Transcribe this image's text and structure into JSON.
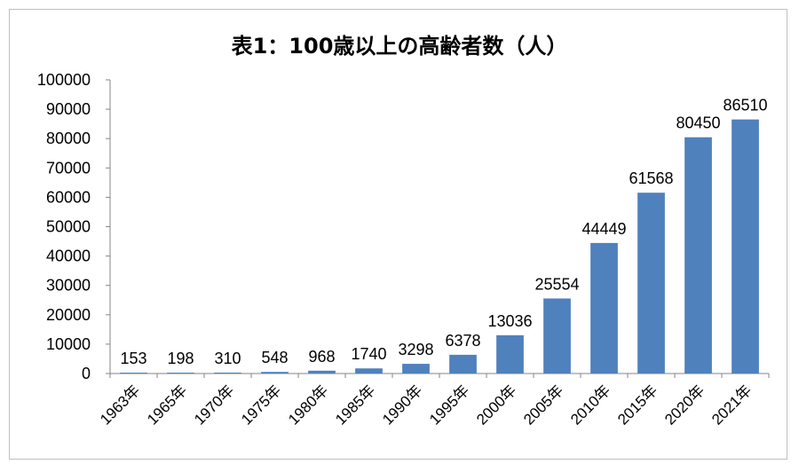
{
  "chart_data": {
    "type": "bar",
    "title": "表1：100歳以上の高齢者数（人）",
    "xlabel": "",
    "ylabel": "",
    "ylim": [
      0,
      100000
    ],
    "yticks": [
      "0",
      "10000",
      "20000",
      "30000",
      "40000",
      "50000",
      "60000",
      "70000",
      "80000",
      "90000",
      "100000"
    ],
    "categories": [
      "1963年",
      "1965年",
      "1970年",
      "1975年",
      "1980年",
      "1985年",
      "1990年",
      "1995年",
      "2000年",
      "2005年",
      "2010年",
      "2015年",
      "2020年",
      "2021年"
    ],
    "values": [
      153,
      198,
      310,
      548,
      968,
      1740,
      3298,
      6378,
      13036,
      25554,
      44449,
      61568,
      80450,
      86510
    ],
    "value_labels": [
      "153",
      "198",
      "310",
      "548",
      "968",
      "1740",
      "3298",
      "6378",
      "13036",
      "25554",
      "44449",
      "61568",
      "80450",
      "86510"
    ],
    "bar_color": "#4f81bd",
    "grid": false,
    "legend": "none"
  }
}
